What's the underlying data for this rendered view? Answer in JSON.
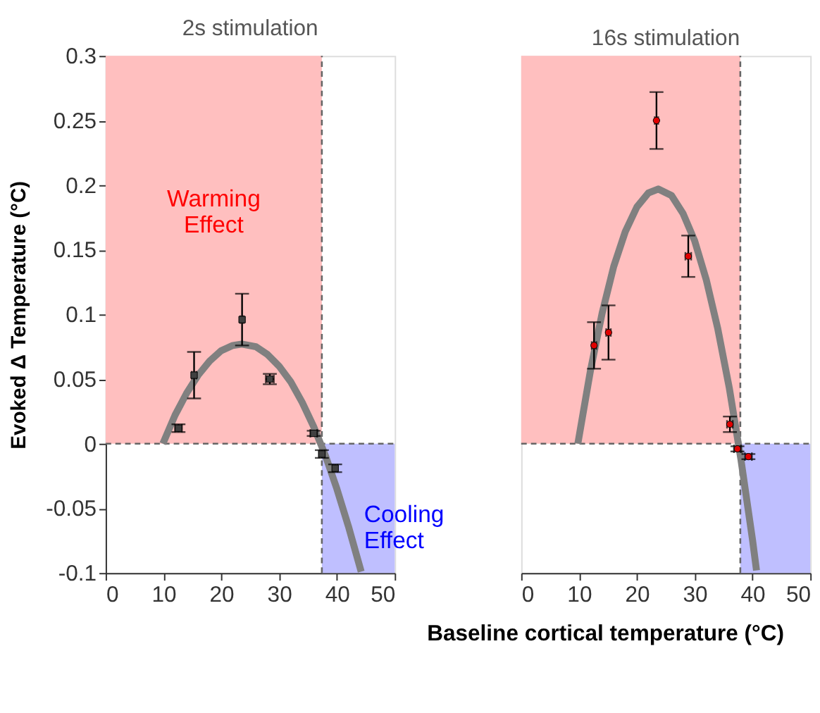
{
  "chart_data": [
    {
      "type": "scatter",
      "title": "2s stimulation",
      "xlabel": "Baseline cortical temperature (°C)",
      "ylabel": "Evoked Δ Temperature (°C)",
      "xlim": [
        0,
        50
      ],
      "xticks": [
        0,
        10,
        20,
        30,
        40,
        50
      ],
      "ylim": [
        -0.1,
        0.3
      ],
      "yticks": [
        -0.1,
        -0.05,
        0,
        0.05,
        0.1,
        0.15,
        0.2,
        0.25,
        0.3
      ],
      "grid": false,
      "bands": [
        {
          "axis": "x",
          "from": 0,
          "to": 37.4,
          "label": "Warming Effect",
          "color": "#ffbfbf"
        },
        {
          "axis": "x",
          "from": 37.4,
          "to": 50,
          "label": "Cooling Effect",
          "color": "#bfbfff"
        }
      ],
      "ref_lines": [
        {
          "axis": "y",
          "value": 0,
          "color": "#666666",
          "line_style": "dashed"
        },
        {
          "axis": "x",
          "value": 37.4,
          "color": "#666666",
          "line_style": "dashed"
        }
      ],
      "series": [
        {
          "type": "line",
          "color": "#808080",
          "marker": "none",
          "line_style": "solid",
          "x": [
            9.9,
            12,
            14,
            16,
            18,
            20,
            22,
            23.55,
            26,
            28,
            30,
            32,
            34,
            36,
            38,
            40,
            42,
            44.2
          ],
          "values": [
            0,
            0.022,
            0.039,
            0.053,
            0.064,
            0.072,
            0.076,
            0.077,
            0.075,
            0.069,
            0.06,
            0.048,
            0.032,
            0.013,
            -0.009,
            -0.035,
            -0.064,
            -0.099
          ]
        },
        {
          "color": "#404040",
          "marker": "square",
          "x": [
            12.6,
            15.3,
            23.6,
            28.4,
            36.0,
            37.4,
            39.7
          ],
          "values": [
            0.012,
            0.053,
            0.096,
            0.05,
            0.008,
            -0.008,
            -0.019
          ],
          "errors": [
            0.003,
            0.018,
            0.02,
            0.004,
            0.002,
            0.003,
            0.003
          ],
          "xerrors": [
            0.6,
            0.4,
            0.3,
            0.7,
            0.6,
            0.5,
            0.4
          ]
        }
      ]
    },
    {
      "type": "scatter",
      "title": "16s stimulation",
      "xlim": [
        0,
        50
      ],
      "xticks": [
        0,
        10,
        20,
        30,
        40,
        50
      ],
      "ylim": [
        -0.1,
        0.3
      ],
      "tick_labels": "x",
      "grid": false,
      "bands": [
        {
          "axis": "x",
          "from": 0,
          "to": 37.9,
          "color": "#ffbfbf"
        },
        {
          "axis": "x",
          "from": 37.9,
          "to": 50,
          "color": "#bfbfff"
        }
      ],
      "ref_lines": [
        {
          "axis": "y",
          "value": 0,
          "color": "#666666",
          "line_style": "dashed"
        },
        {
          "axis": "x",
          "value": 37.9,
          "color": "#666666",
          "line_style": "dashed"
        }
      ],
      "series": [
        {
          "type": "line",
          "color": "#808080",
          "marker": "none",
          "line_style": "solid",
          "x": [
            9.8,
            12,
            14,
            16,
            18,
            20,
            22,
            23.7,
            26,
            28,
            30,
            32,
            34,
            36,
            38,
            40,
            40.7
          ],
          "values": [
            0,
            0.057,
            0.101,
            0.137,
            0.164,
            0.183,
            0.194,
            0.197,
            0.192,
            0.178,
            0.157,
            0.127,
            0.089,
            0.043,
            -0.012,
            -0.074,
            -0.098
          ]
        },
        {
          "color": "#e00000",
          "marker": "circle",
          "x": [
            12.6,
            15.1,
            23.4,
            28.9,
            36.1,
            37.4,
            39.3
          ],
          "values": [
            0.076,
            0.086,
            0.25,
            0.145,
            0.015,
            -0.004,
            -0.01
          ],
          "errors": [
            0.018,
            0.021,
            0.022,
            0.016,
            0.006,
            0.002,
            0.002
          ],
          "xerrors": [
            0.4,
            0.4,
            0.3,
            0.5,
            0.5,
            0.6,
            0.6
          ]
        }
      ]
    }
  ]
}
